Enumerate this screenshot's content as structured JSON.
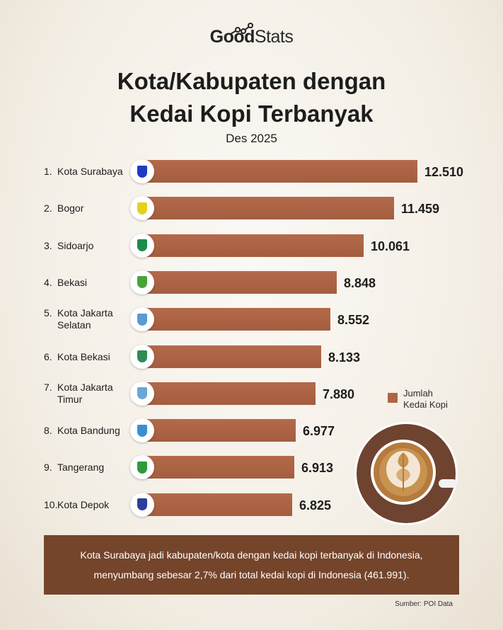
{
  "brand": {
    "logo_bold": "Good",
    "logo_light": "Stats"
  },
  "header": {
    "title_line1": "Kota/Kabupaten dengan",
    "title_line2": "Kedai Kopi Terbanyak",
    "subtitle": "Des 2025"
  },
  "colors": {
    "bar": "#ae6546",
    "note_bg": "#74452b",
    "text": "#1d1d1d"
  },
  "rows": [
    {
      "rank": "1.",
      "name_line1": "Kota Surabaya",
      "name_line2": "",
      "value_label": "12.510",
      "value": 12510,
      "emblem": "surabaya-emblem",
      "emblem_color": "#1e3bbf"
    },
    {
      "rank": "2.",
      "name_line1": "Bogor",
      "name_line2": "",
      "value_label": "11.459",
      "value": 11459,
      "emblem": "bogor-emblem",
      "emblem_color": "#e2d21b"
    },
    {
      "rank": "3.",
      "name_line1": "Sidoarjo",
      "name_line2": "",
      "value_label": "10.061",
      "value": 10061,
      "emblem": "sidoarjo-emblem",
      "emblem_color": "#1c8a4a"
    },
    {
      "rank": "4.",
      "name_line1": "Bekasi",
      "name_line2": "",
      "value_label": "8.848",
      "value": 8848,
      "emblem": "bekasi-emblem",
      "emblem_color": "#4aa33a"
    },
    {
      "rank": "5.",
      "name_line1": "Kota Jakarta",
      "name_line2": "Selatan",
      "value_label": "8.552",
      "value": 8552,
      "emblem": "jakarta-selatan-emblem",
      "emblem_color": "#5a9ad0"
    },
    {
      "rank": "6.",
      "name_line1": "Kota Bekasi",
      "name_line2": "",
      "value_label": "8.133",
      "value": 8133,
      "emblem": "kota-bekasi-emblem",
      "emblem_color": "#2e8b57"
    },
    {
      "rank": "7.",
      "name_line1": "Kota Jakarta",
      "name_line2": "Timur",
      "value_label": "7.880",
      "value": 7880,
      "emblem": "jakarta-timur-emblem",
      "emblem_color": "#6aa6d6"
    },
    {
      "rank": "8.",
      "name_line1": "Kota Bandung",
      "name_line2": "",
      "value_label": "6.977",
      "value": 6977,
      "emblem": "bandung-emblem",
      "emblem_color": "#3b8fd0"
    },
    {
      "rank": "9.",
      "name_line1": "Tangerang",
      "name_line2": "",
      "value_label": "6.913",
      "value": 6913,
      "emblem": "tangerang-emblem",
      "emblem_color": "#2f9a3c"
    },
    {
      "rank": "10.",
      "name_line1": "Kota Depok",
      "name_line2": "",
      "value_label": "6.825",
      "value": 6825,
      "emblem": "depok-emblem",
      "emblem_color": "#2a3f9a"
    }
  ],
  "legend": {
    "line1": "Jumlah",
    "line2": "Kedai Kopi"
  },
  "note": {
    "line1": "Kota Surabaya jadi kabupaten/kota dengan kedai kopi terbanyak di Indonesia,",
    "line2": "menyumbang sebesar 2,7% dari total kedai kopi di Indonesia (461.991)."
  },
  "source": "Sumber: POI Data",
  "chart_data": {
    "type": "bar",
    "orientation": "horizontal",
    "title": "Kota/Kabupaten dengan Kedai Kopi Terbanyak",
    "subtitle": "Des 2025",
    "categories": [
      "Kota Surabaya",
      "Bogor",
      "Sidoarjo",
      "Bekasi",
      "Kota Jakarta Selatan",
      "Kota Bekasi",
      "Kota Jakarta Timur",
      "Kota Bandung",
      "Tangerang",
      "Kota Depok"
    ],
    "series": [
      {
        "name": "Jumlah Kedai Kopi",
        "values": [
          12510,
          11459,
          10061,
          8848,
          8552,
          8133,
          7880,
          6977,
          6913,
          6825
        ]
      }
    ],
    "xlabel": "",
    "ylabel": "",
    "legend_position": "right",
    "grid": false,
    "annotations": [
      "Kota Surabaya jadi kabupaten/kota dengan kedai kopi terbanyak di Indonesia, menyumbang sebesar 2,7% dari total kedai kopi di Indonesia (461.991)."
    ],
    "source": "Sumber: POI Data"
  }
}
